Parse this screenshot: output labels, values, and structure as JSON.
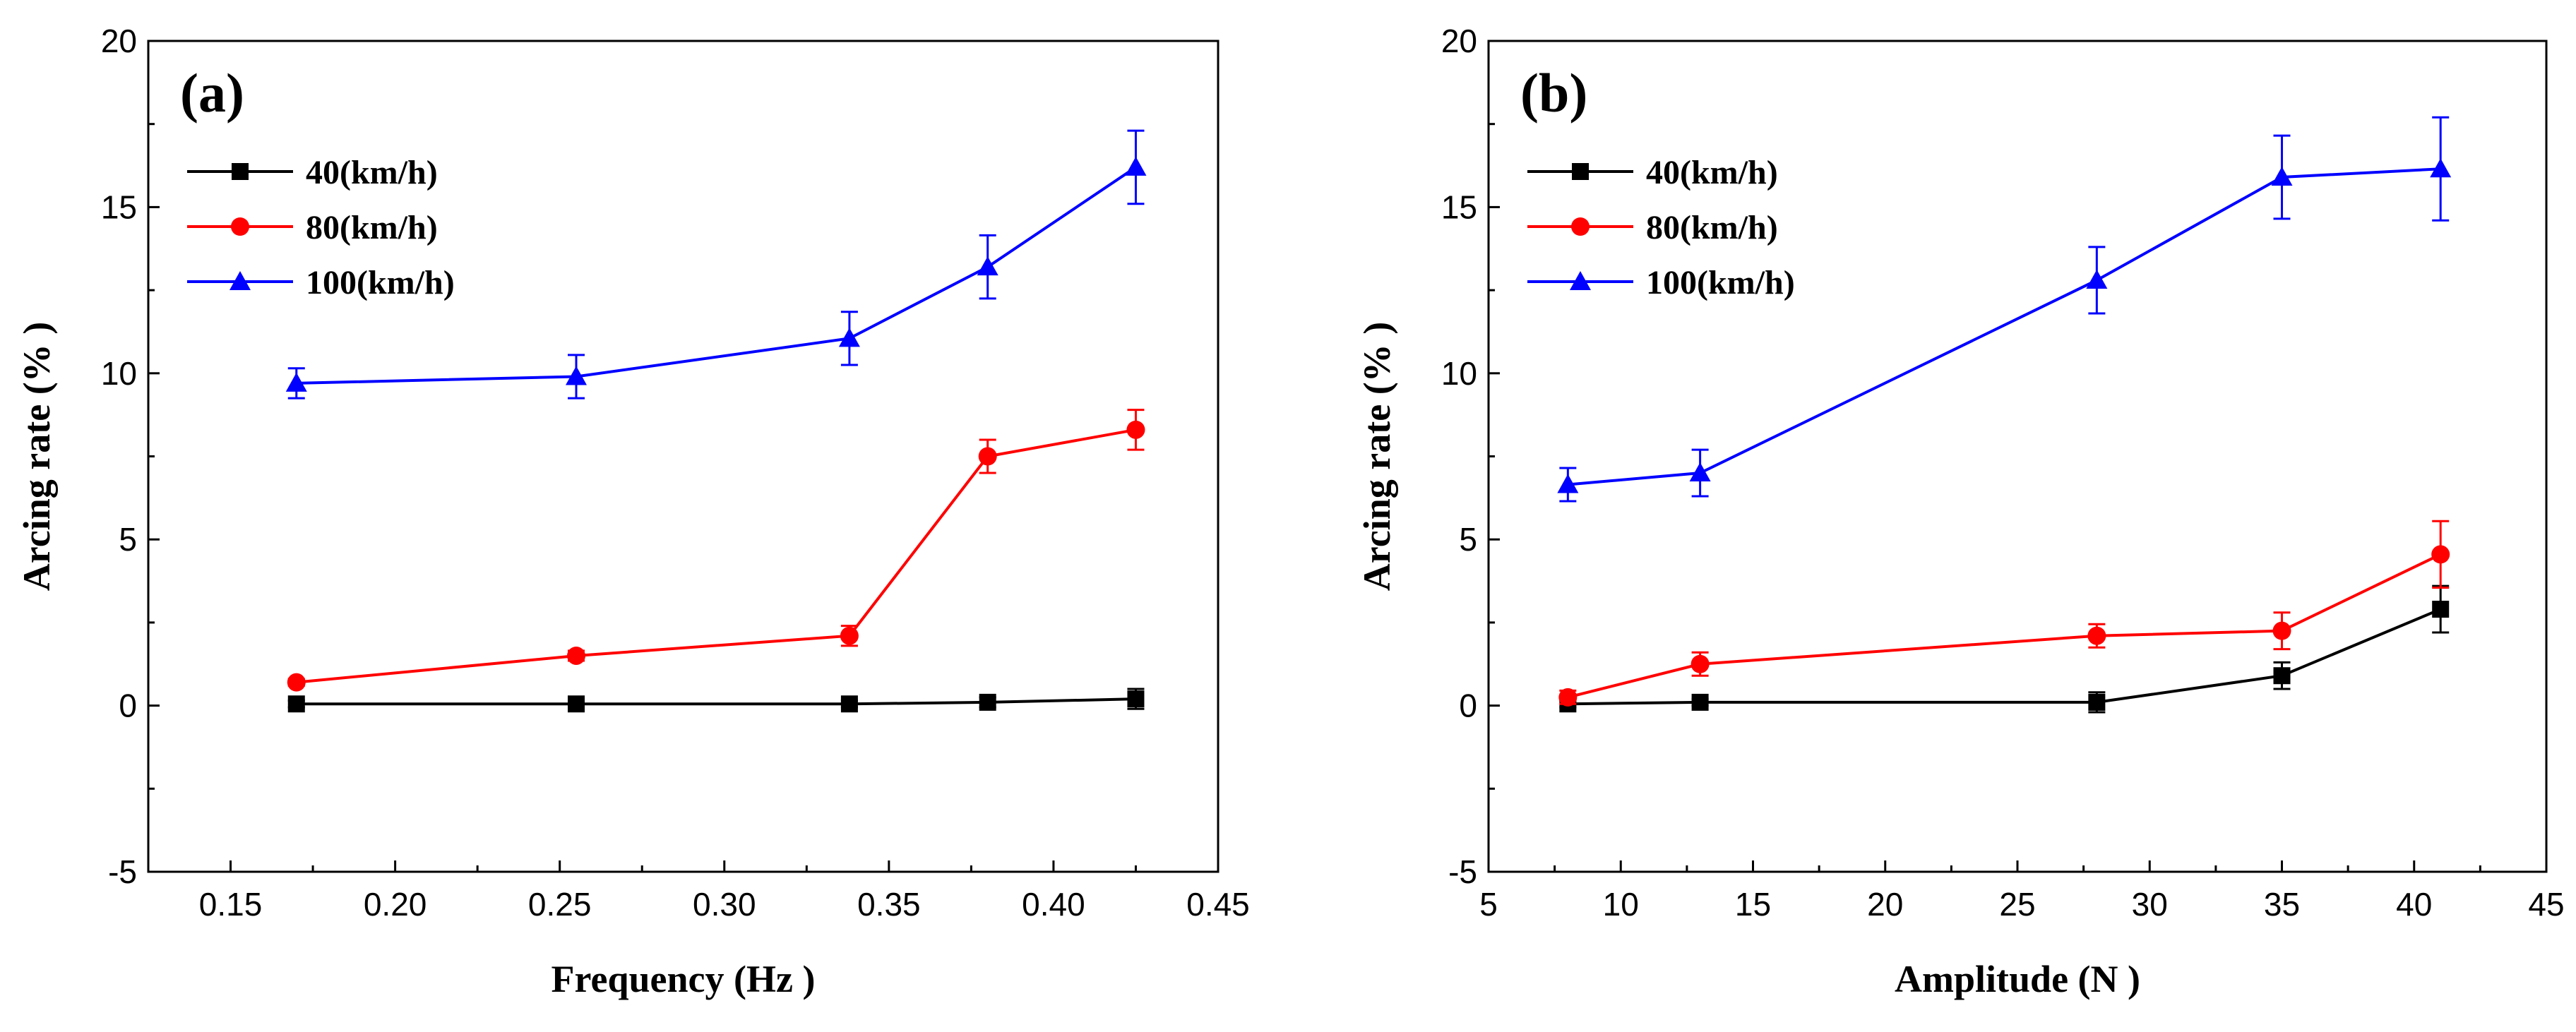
{
  "chart_data": [
    {
      "type": "line",
      "panel_label": "(a)",
      "title": "",
      "xlabel": "Frequency (Hz )",
      "ylabel": "Arcing rate (% )",
      "xlim": [
        0.125,
        0.45
      ],
      "ylim": [
        -5,
        20
      ],
      "xticks": [
        0.15,
        0.2,
        0.25,
        0.3,
        0.35,
        0.4,
        0.45
      ],
      "xtick_labels": [
        "0.15",
        "0.20",
        "0.25",
        "0.30",
        "0.35",
        "0.40",
        "0.45"
      ],
      "yticks": [
        -5,
        0,
        5,
        10,
        15,
        20
      ],
      "ytick_labels": [
        "-5",
        "0",
        "5",
        "10",
        "15",
        "20"
      ],
      "legend_position": "top-left",
      "x": [
        0.17,
        0.255,
        0.338,
        0.38,
        0.425
      ],
      "series": [
        {
          "name": "40(km/h)",
          "color": "#000000",
          "marker": "square",
          "values": [
            0.05,
            0.05,
            0.05,
            0.1,
            0.2
          ],
          "errors": [
            0.1,
            0.1,
            0.1,
            0.15,
            0.3
          ]
        },
        {
          "name": "80(km/h)",
          "color": "#ff0000",
          "marker": "circle",
          "values": [
            0.7,
            1.5,
            2.1,
            7.5,
            8.3
          ],
          "errors": [
            0.1,
            0.15,
            0.3,
            0.5,
            0.6
          ]
        },
        {
          "name": "100(km/h)",
          "color": "#0000ff",
          "marker": "triangle",
          "values": [
            9.7,
            9.9,
            11.05,
            13.2,
            16.2
          ],
          "errors": [
            0.45,
            0.65,
            0.8,
            0.95,
            1.1
          ]
        }
      ]
    },
    {
      "type": "line",
      "panel_label": "(b)",
      "title": "",
      "xlabel": "Amplitude (N )",
      "ylabel": "Arcing rate (% )",
      "xlim": [
        5,
        45
      ],
      "ylim": [
        -5,
        20
      ],
      "xticks": [
        5,
        10,
        15,
        20,
        25,
        30,
        35,
        40,
        45
      ],
      "xtick_labels": [
        "5",
        "10",
        "15",
        "20",
        "25",
        "30",
        "35",
        "40",
        "45"
      ],
      "yticks": [
        -5,
        0,
        5,
        10,
        15,
        20
      ],
      "ytick_labels": [
        "-5",
        "0",
        "5",
        "10",
        "15",
        "20"
      ],
      "legend_position": "top-left",
      "x": [
        8,
        13,
        28,
        35,
        41
      ],
      "series": [
        {
          "name": "40(km/h)",
          "color": "#000000",
          "marker": "square",
          "values": [
            0.05,
            0.1,
            0.1,
            0.9,
            2.9
          ],
          "errors": [
            0.1,
            0.1,
            0.3,
            0.4,
            0.7
          ]
        },
        {
          "name": "80(km/h)",
          "color": "#ff0000",
          "marker": "circle",
          "values": [
            0.25,
            1.25,
            2.1,
            2.25,
            4.55
          ],
          "errors": [
            0.2,
            0.35,
            0.35,
            0.55,
            1.0
          ]
        },
        {
          "name": "100(km/h)",
          "color": "#0000ff",
          "marker": "triangle",
          "values": [
            6.65,
            7.0,
            12.8,
            15.9,
            16.15
          ],
          "errors": [
            0.5,
            0.7,
            1.0,
            1.25,
            1.55
          ]
        }
      ]
    }
  ]
}
